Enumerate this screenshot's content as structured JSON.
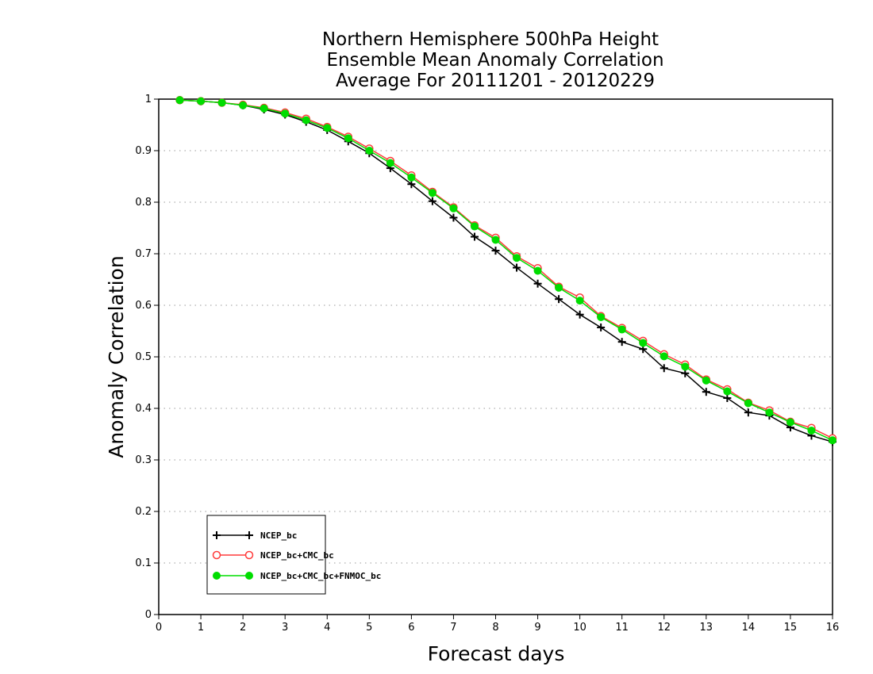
{
  "chart_data": {
    "type": "line",
    "title": [
      "Northern Hemisphere 500hPa Height",
      "Ensemble Mean Anomaly Correlation",
      "Average For 20111201 - 20120229"
    ],
    "xlabel": "Forecast days",
    "ylabel": "Anomaly Correlation",
    "xlim": [
      0,
      16
    ],
    "ylim": [
      0,
      1
    ],
    "x_ticks": [
      "0",
      "1",
      "2",
      "3",
      "4",
      "5",
      "6",
      "7",
      "8",
      "9",
      "10",
      "11",
      "12",
      "13",
      "14",
      "15",
      "16"
    ],
    "y_ticks": [
      "0",
      "0.1",
      "0.2",
      "0.3",
      "0.4",
      "0.5",
      "0.6",
      "0.7",
      "0.8",
      "0.9",
      "1"
    ],
    "grid": "horizontal dotted",
    "legend_position": "lower-left",
    "x": [
      0.5,
      1,
      1.5,
      2,
      2.5,
      3,
      3.5,
      4,
      4.5,
      5,
      5.5,
      6,
      6.5,
      7,
      7.5,
      8,
      8.5,
      9,
      9.5,
      10,
      10.5,
      11,
      11.5,
      12,
      12.5,
      13,
      13.5,
      14,
      14.5,
      15,
      15.5,
      16
    ],
    "series": [
      {
        "name": "NCEP_bc",
        "color": "#000000",
        "marker": "plus",
        "values": [
          0.998,
          0.996,
          0.993,
          0.988,
          0.98,
          0.97,
          0.956,
          0.94,
          0.918,
          0.895,
          0.866,
          0.835,
          0.802,
          0.77,
          0.733,
          0.706,
          0.673,
          0.642,
          0.612,
          0.582,
          0.557,
          0.529,
          0.515,
          0.478,
          0.468,
          0.432,
          0.42,
          0.392,
          0.386,
          0.363,
          0.347,
          0.335
        ]
      },
      {
        "name": "NCEP_bc+CMC_bc",
        "color": "#ff3b3b",
        "marker": "open-circle",
        "values": [
          0.998,
          0.996,
          0.993,
          0.989,
          0.983,
          0.974,
          0.962,
          0.946,
          0.927,
          0.904,
          0.88,
          0.852,
          0.82,
          0.79,
          0.755,
          0.731,
          0.695,
          0.672,
          0.636,
          0.615,
          0.579,
          0.556,
          0.531,
          0.505,
          0.485,
          0.456,
          0.437,
          0.411,
          0.396,
          0.374,
          0.362,
          0.342
        ]
      },
      {
        "name": "NCEP_bc+CMC_bc+FNMOC_bc",
        "color": "#00dd00",
        "marker": "filled-circle",
        "values": [
          0.998,
          0.996,
          0.993,
          0.988,
          0.982,
          0.972,
          0.959,
          0.944,
          0.924,
          0.9,
          0.876,
          0.848,
          0.818,
          0.788,
          0.753,
          0.727,
          0.692,
          0.667,
          0.634,
          0.609,
          0.577,
          0.553,
          0.527,
          0.501,
          0.481,
          0.454,
          0.433,
          0.41,
          0.392,
          0.373,
          0.357,
          0.338
        ]
      }
    ]
  }
}
